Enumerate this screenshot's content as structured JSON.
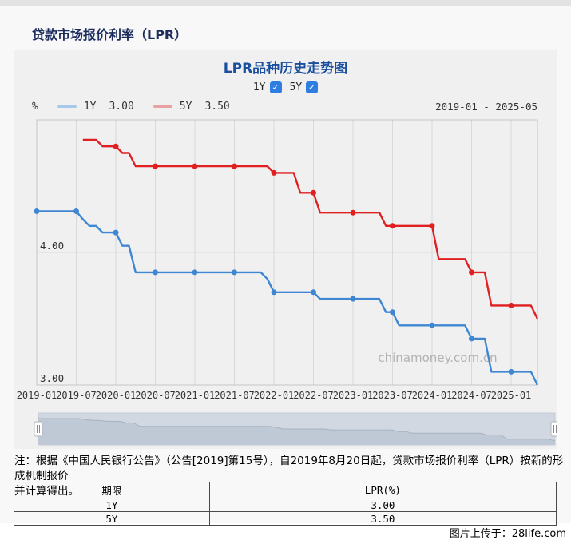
{
  "header": {
    "title": "贷款市场报价利率（LPR）"
  },
  "panel": {
    "chart_title": "LPR品种历史走势图",
    "toggles": [
      {
        "label": "1Y",
        "checked": true
      },
      {
        "label": "5Y",
        "checked": true
      }
    ],
    "y_unit": "%",
    "legend": [
      {
        "name": "1Y",
        "value": "3.00",
        "swatch_color": "#a9c7e9",
        "line_color": "#3f87d2"
      },
      {
        "name": "5Y",
        "value": "3.50",
        "swatch_color": "#e9a0a0",
        "line_color": "#e02020"
      }
    ],
    "date_range": "2019-01 - 2025-05"
  },
  "chart_data": {
    "type": "line",
    "title": "LPR品种历史走势图",
    "ylabel": "%",
    "ylim": [
      3.0,
      5.0
    ],
    "grid": true,
    "legend_position": "top-left",
    "tick_every": 6,
    "marker_every": 6,
    "watermark": "chinamoney.com.cn",
    "y_axis_labels": [
      {
        "value": 4.0,
        "label": "4.00"
      },
      {
        "value": 3.0,
        "label": "3.00"
      }
    ],
    "x": [
      "2019-01",
      "2019-02",
      "2019-03",
      "2019-04",
      "2019-05",
      "2019-06",
      "2019-07",
      "2019-08",
      "2019-09",
      "2019-10",
      "2019-11",
      "2019-12",
      "2020-01",
      "2020-02",
      "2020-03",
      "2020-04",
      "2020-05",
      "2020-06",
      "2020-07",
      "2020-08",
      "2020-09",
      "2020-10",
      "2020-11",
      "2020-12",
      "2021-01",
      "2021-02",
      "2021-03",
      "2021-04",
      "2021-05",
      "2021-06",
      "2021-07",
      "2021-08",
      "2021-09",
      "2021-10",
      "2021-11",
      "2021-12",
      "2022-01",
      "2022-02",
      "2022-03",
      "2022-04",
      "2022-05",
      "2022-06",
      "2022-07",
      "2022-08",
      "2022-09",
      "2022-10",
      "2022-11",
      "2022-12",
      "2023-01",
      "2023-02",
      "2023-03",
      "2023-04",
      "2023-05",
      "2023-06",
      "2023-07",
      "2023-08",
      "2023-09",
      "2023-10",
      "2023-11",
      "2023-12",
      "2024-01",
      "2024-02",
      "2024-03",
      "2024-04",
      "2024-05",
      "2024-06",
      "2024-07",
      "2024-08",
      "2024-09",
      "2024-10",
      "2024-11",
      "2024-12",
      "2025-01",
      "2025-02",
      "2025-03",
      "2025-04",
      "2025-05"
    ],
    "series": [
      {
        "name": "1Y",
        "color": "#3f87d2",
        "values": [
          4.31,
          4.31,
          4.31,
          4.31,
          4.31,
          4.31,
          4.31,
          4.25,
          4.2,
          4.2,
          4.15,
          4.15,
          4.15,
          4.05,
          4.05,
          3.85,
          3.85,
          3.85,
          3.85,
          3.85,
          3.85,
          3.85,
          3.85,
          3.85,
          3.85,
          3.85,
          3.85,
          3.85,
          3.85,
          3.85,
          3.85,
          3.85,
          3.85,
          3.85,
          3.85,
          3.8,
          3.7,
          3.7,
          3.7,
          3.7,
          3.7,
          3.7,
          3.7,
          3.65,
          3.65,
          3.65,
          3.65,
          3.65,
          3.65,
          3.65,
          3.65,
          3.65,
          3.65,
          3.55,
          3.55,
          3.45,
          3.45,
          3.45,
          3.45,
          3.45,
          3.45,
          3.45,
          3.45,
          3.45,
          3.45,
          3.45,
          3.35,
          3.35,
          3.35,
          3.1,
          3.1,
          3.1,
          3.1,
          3.1,
          3.1,
          3.1,
          3.0
        ]
      },
      {
        "name": "5Y",
        "color": "#e02020",
        "values": [
          null,
          null,
          null,
          null,
          null,
          null,
          null,
          4.85,
          4.85,
          4.85,
          4.8,
          4.8,
          4.8,
          4.75,
          4.75,
          4.65,
          4.65,
          4.65,
          4.65,
          4.65,
          4.65,
          4.65,
          4.65,
          4.65,
          4.65,
          4.65,
          4.65,
          4.65,
          4.65,
          4.65,
          4.65,
          4.65,
          4.65,
          4.65,
          4.65,
          4.65,
          4.6,
          4.6,
          4.6,
          4.6,
          4.45,
          4.45,
          4.45,
          4.3,
          4.3,
          4.3,
          4.3,
          4.3,
          4.3,
          4.3,
          4.3,
          4.3,
          4.3,
          4.2,
          4.2,
          4.2,
          4.2,
          4.2,
          4.2,
          4.2,
          4.2,
          3.95,
          3.95,
          3.95,
          3.95,
          3.95,
          3.85,
          3.85,
          3.85,
          3.6,
          3.6,
          3.6,
          3.6,
          3.6,
          3.6,
          3.6,
          3.5
        ]
      }
    ]
  },
  "note": {
    "lines": [
      "注：根据《中国人民银行公告》（公告[2019]第15号），自2019年8月20日起，贷款市场报价利率（LPR）按新的形成机制报价",
      "并计算得出。"
    ]
  },
  "table": {
    "headers": [
      "期限",
      "LPR(%)"
    ],
    "rows": [
      [
        "1Y",
        "3.00"
      ],
      [
        "5Y",
        "3.50"
      ]
    ]
  },
  "footer": {
    "credit": "图片上传于：28life.com"
  },
  "colors": {
    "line_1y": "#3f87d2",
    "line_5y": "#e02020",
    "checkbox_blue": "#2e7de0",
    "title_navy": "#1c2c5c",
    "chart_title_blue": "#1a4f9e",
    "panel_bg": "#f0f0f1",
    "slider_bg": "#d2d8e2",
    "slider_fill": "#bfc8d5",
    "watermark_gray": "#b3b3b3"
  }
}
